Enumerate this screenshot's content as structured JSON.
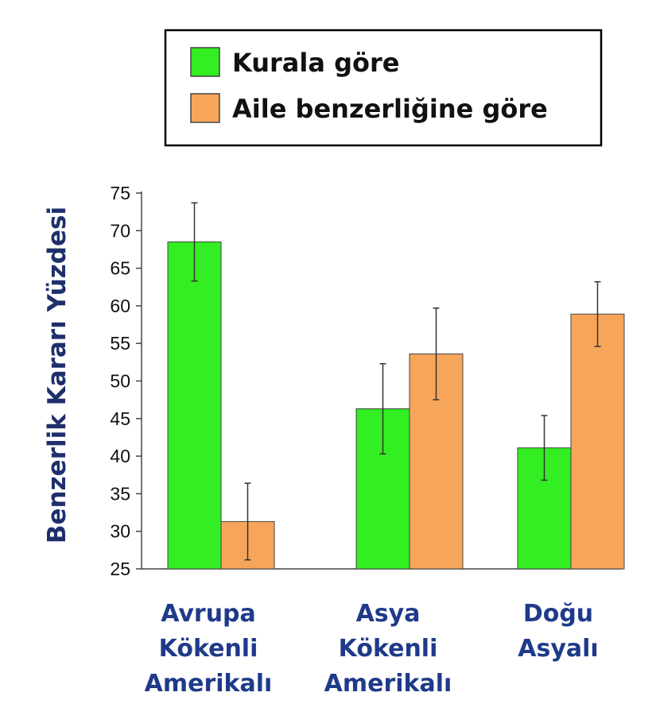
{
  "chart_data": {
    "type": "bar",
    "ylabel": "Benzerlik Kararı Yüzdesi",
    "ylim": [
      25,
      75
    ],
    "yticks": [
      25,
      30,
      35,
      40,
      45,
      50,
      55,
      60,
      65,
      70,
      75
    ],
    "categories": [
      [
        "Avrupa",
        "Kökenli",
        "Amerikalı"
      ],
      [
        "Asya",
        "Kökenli",
        "Amerikalı"
      ],
      [
        "Doğu",
        "Asyalı"
      ]
    ],
    "series": [
      {
        "name": "Kurala göre",
        "color": "#33ee22",
        "values": [
          68.5,
          46.3,
          41.1
        ],
        "errors": [
          5.2,
          6.0,
          4.3
        ]
      },
      {
        "name": "Aile benzerliğine göre",
        "color": "#f7a55a",
        "values": [
          31.3,
          53.6,
          58.9
        ],
        "errors": [
          5.1,
          6.1,
          4.3
        ]
      }
    ],
    "legend": "top"
  }
}
